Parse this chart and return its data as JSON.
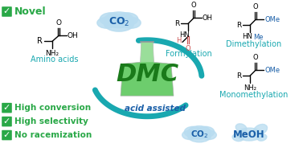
{
  "bg_color": "#ffffff",
  "green": "#29a847",
  "teal": "#19a8b0",
  "checkmark_bg": "#29a847",
  "dmc_color": "#1a7a1a",
  "arrow_color": "#19a8b0",
  "cloud_color": "#b8dcf0",
  "title": "DMC",
  "acid_assisted": "acid assisted",
  "novel_text": "Novel",
  "co2_top": "CO₂",
  "co2_bottom": "CO₂",
  "meoh": "MeOH",
  "amino_acids": "Amino acids",
  "formylation": "Formylation",
  "dimethylation": "Dimethylation",
  "monomethylation": "Monomethylation",
  "high_conversion": "High conversion",
  "high_selectivity": "High selectivity",
  "no_racemization": "No racemization",
  "flask_green": "#5dc85d",
  "flask_light": "#c8f0c8",
  "ome_color": "#1a5fa8",
  "me_color": "#1a5fa8",
  "formyl_pink": "#cc5555"
}
